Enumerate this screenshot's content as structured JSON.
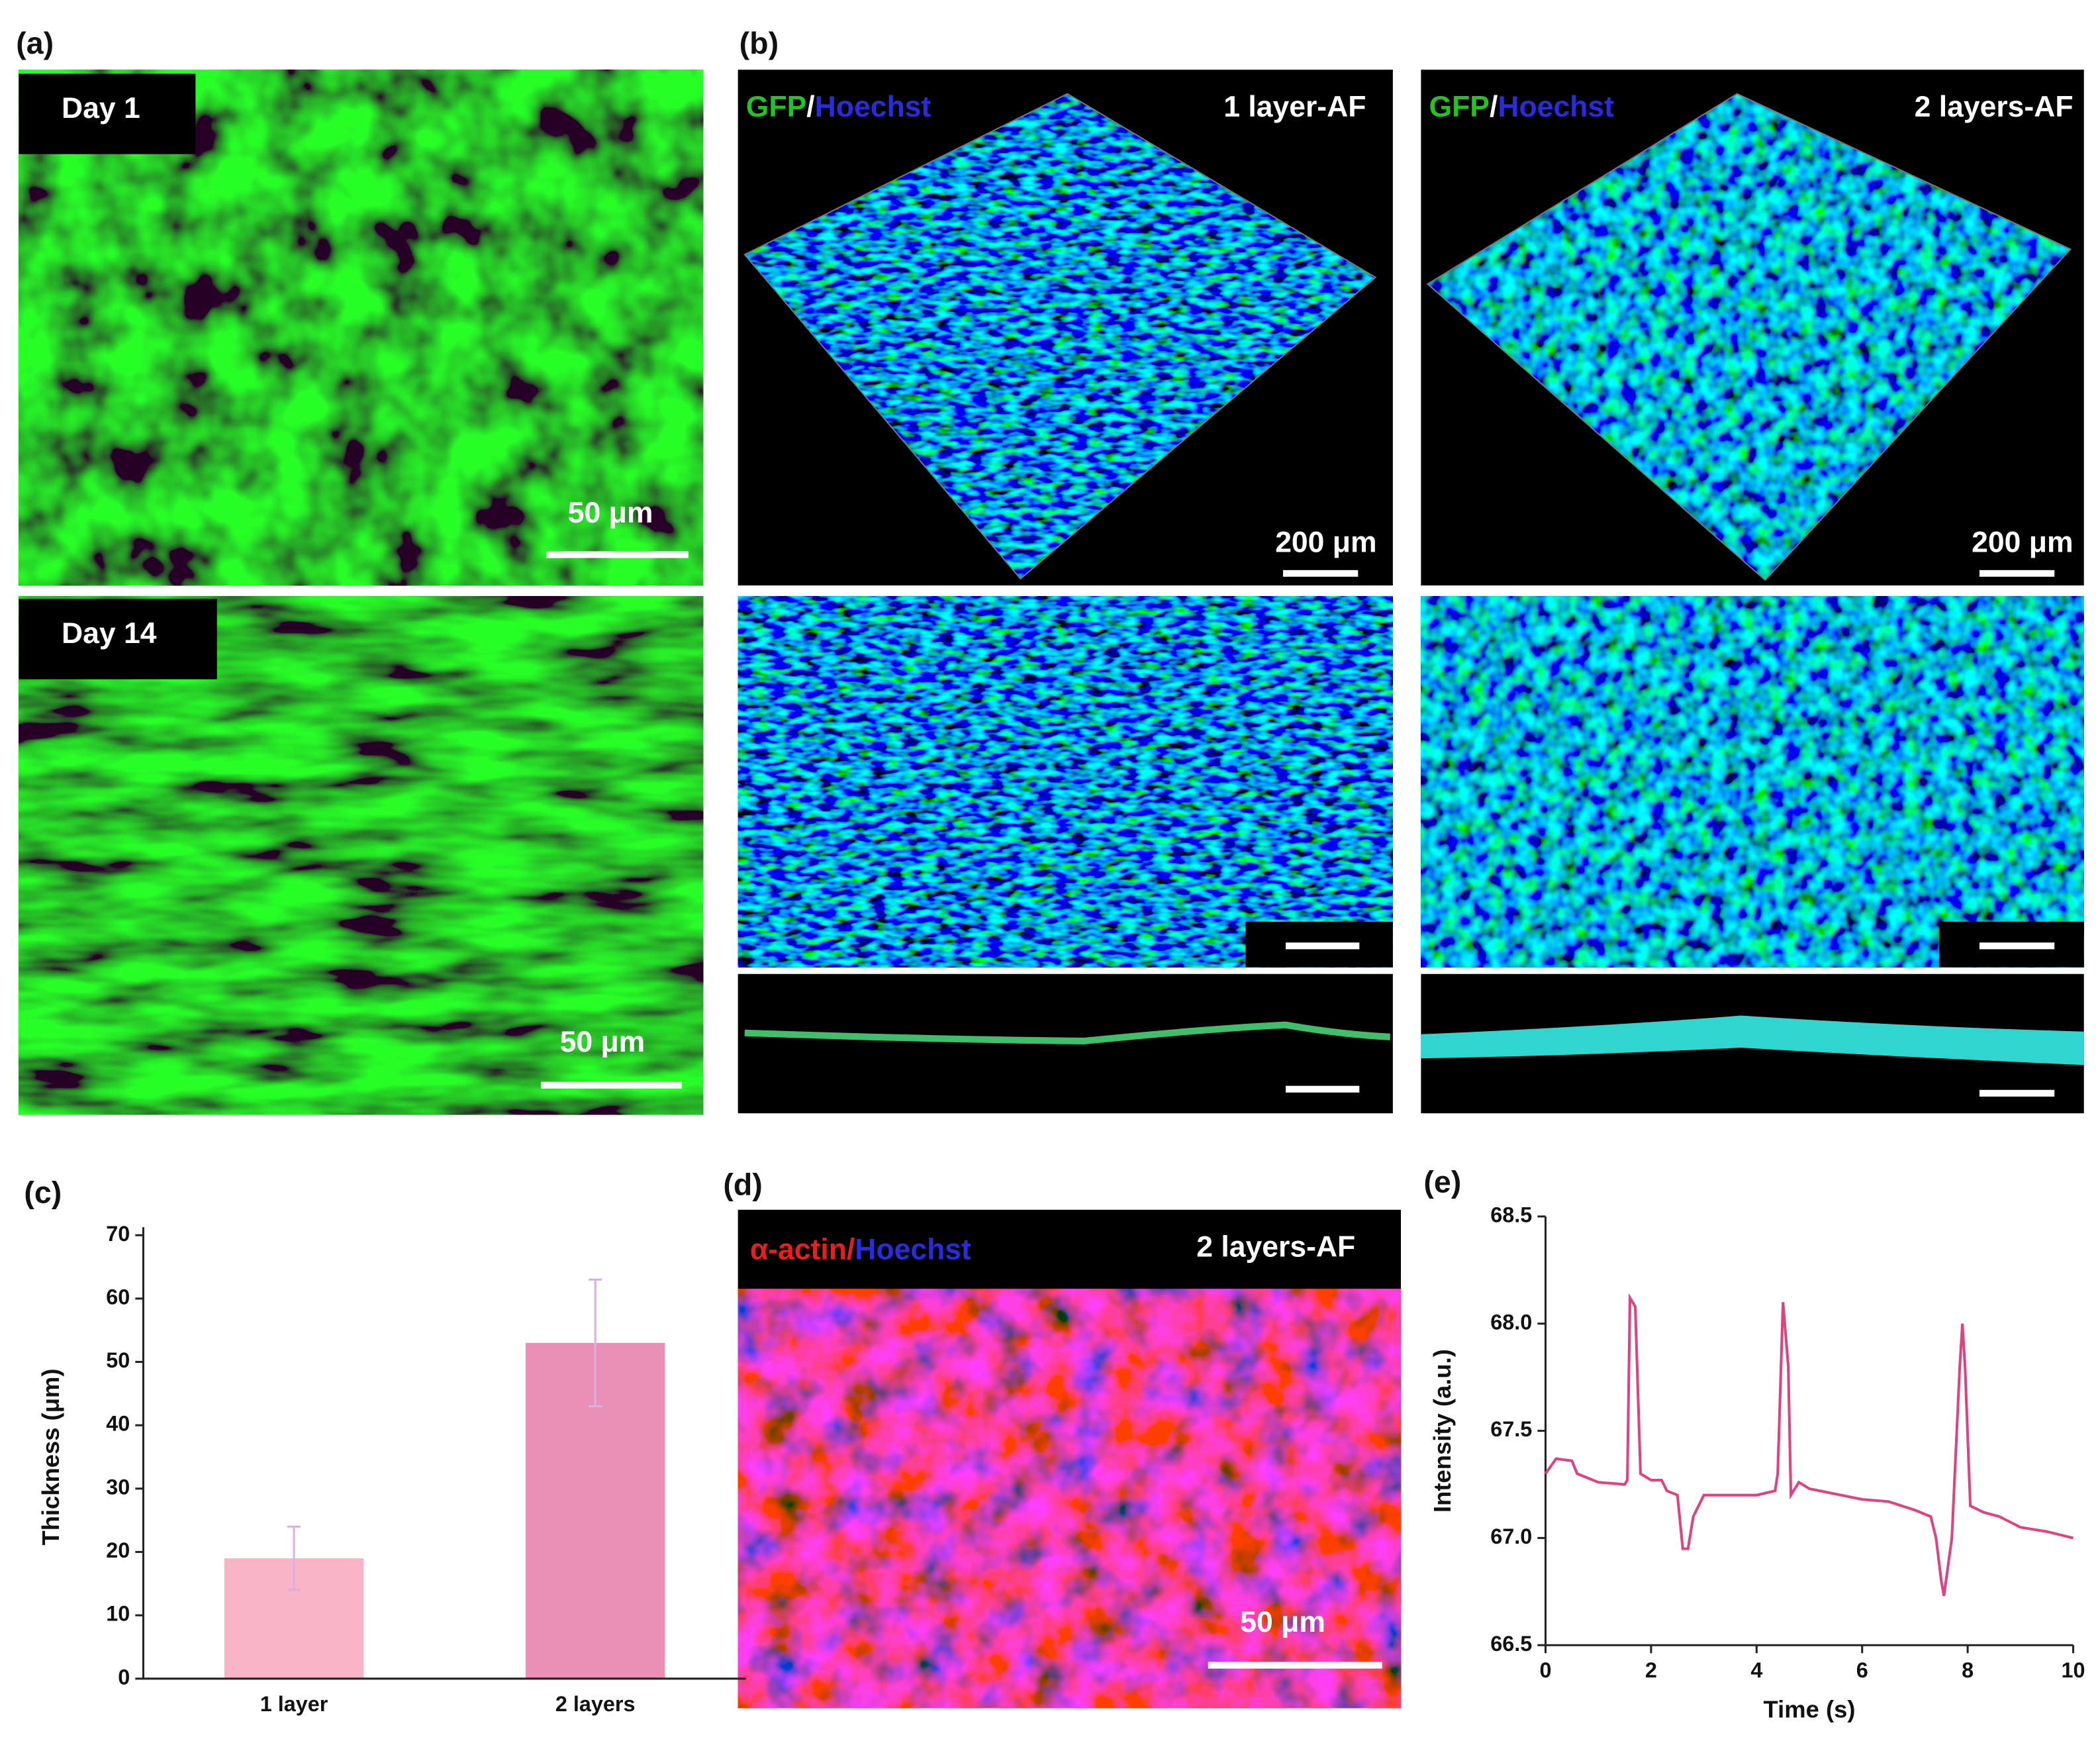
{
  "panel_labels": [
    "(a)",
    "(b)",
    "(c)",
    "(d)",
    "(e)"
  ],
  "panel_a": {
    "top": {
      "label": "Day 1",
      "scale": "50 μm"
    },
    "bottom": {
      "label": "Day 14",
      "scale": "50 μm"
    }
  },
  "panel_b": {
    "left": {
      "stain": [
        "GFP",
        "/",
        "Hoechst"
      ],
      "label": "1 layer-AF",
      "scale": "200 μm"
    },
    "right": {
      "stain": [
        "GFP",
        "/",
        "Hoechst"
      ],
      "label": "2 layers-AF",
      "scale": "200 μm"
    }
  },
  "panel_d": {
    "stain": [
      "α-actin",
      "/",
      "Hoechst"
    ],
    "label": "2 layers-AF",
    "scale": "50 μm"
  },
  "chart_data": [
    {
      "type": "bar",
      "ylabel": "Thickness (μm)",
      "categories": [
        "1 layer",
        "2 layers"
      ],
      "values": [
        19,
        53
      ],
      "errors": [
        5,
        10
      ],
      "colors": [
        "#f9b4c8",
        "#ea8fb6"
      ],
      "error_color": "#d9b1dc",
      "ylim": [
        0,
        70
      ],
      "yticks": [
        0,
        10,
        20,
        30,
        40,
        50,
        60,
        70
      ]
    },
    {
      "type": "line",
      "xlabel": "Time (s)",
      "ylabel": "Intensity (a.u.)",
      "color": "#e2417f",
      "x": [
        0,
        0.2,
        0.5,
        0.6,
        1.0,
        1.5,
        1.55,
        1.6,
        1.7,
        1.8,
        2.0,
        2.2,
        2.3,
        2.5,
        2.6,
        2.7,
        2.8,
        3.0,
        3.5,
        4.0,
        4.35,
        4.4,
        4.5,
        4.6,
        4.65,
        4.8,
        5.0,
        6.0,
        6.5,
        7.0,
        7.3,
        7.4,
        7.5,
        7.55,
        7.7,
        7.85,
        7.9,
        7.95,
        8.05,
        8.3,
        8.6,
        9.0,
        9.5,
        10.0
      ],
      "values": [
        67.3,
        67.37,
        67.36,
        67.3,
        67.26,
        67.25,
        67.27,
        68.12,
        68.08,
        67.3,
        67.27,
        67.27,
        67.22,
        67.2,
        66.95,
        66.95,
        67.1,
        67.2,
        67.2,
        67.2,
        67.22,
        67.3,
        68.1,
        67.8,
        67.2,
        67.26,
        67.23,
        67.18,
        67.17,
        67.13,
        67.1,
        67.0,
        66.8,
        66.73,
        67.0,
        67.8,
        68.0,
        67.8,
        67.15,
        67.12,
        67.1,
        67.05,
        67.03,
        67.0
      ],
      "xlim": [
        0,
        10
      ],
      "xticks": [
        0,
        2,
        4,
        6,
        8,
        10
      ],
      "ylim": [
        66.5,
        68.5
      ],
      "yticks": [
        66.5,
        {
          "value": 67,
          "label": "67.0"
        },
        67.5,
        {
          "value": 68,
          "label": "68.0"
        },
        68.5
      ]
    }
  ]
}
